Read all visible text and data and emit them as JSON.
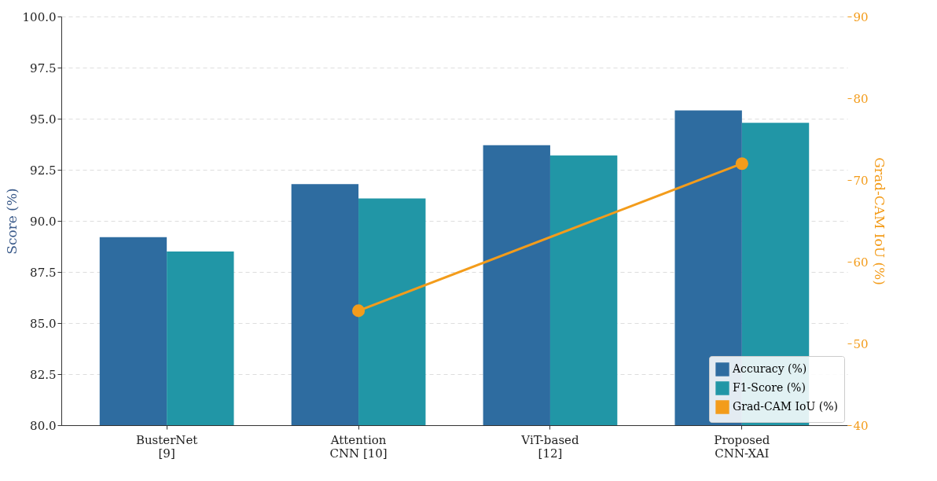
{
  "chart_data": {
    "type": "bar",
    "categories": [
      "BusterNet\n[9]",
      "Attention\nCNN [10]",
      "ViT-based\n[12]",
      "Proposed\nCNN-XAI"
    ],
    "ylabel": "Score (%)",
    "y2label": "Grad-CAM IoU (%)",
    "series": [
      {
        "name": "Accuracy (%)",
        "color": "#2e6ca0",
        "values": [
          89.2,
          91.8,
          93.7,
          95.4
        ]
      },
      {
        "name": "F1-Score (%)",
        "color": "#2196a6",
        "values": [
          88.5,
          91.1,
          93.2,
          94.8
        ]
      },
      {
        "name": "Grad-CAM IoU (%)",
        "type": "line",
        "axis": "y2",
        "color": "#f39c1b",
        "marker": "circle",
        "values": [
          null,
          54,
          null,
          72
        ]
      }
    ],
    "ylim": [
      80,
      100
    ],
    "yticks": [
      {
        "value": 80,
        "label": "80.0"
      },
      {
        "value": 82.5,
        "label": "82.5"
      },
      {
        "value": 85,
        "label": "85.0"
      },
      {
        "value": 87.5,
        "label": "87.5"
      },
      {
        "value": 90,
        "label": "90.0"
      },
      {
        "value": 92.5,
        "label": "92.5"
      },
      {
        "value": 95,
        "label": "95.0"
      },
      {
        "value": 97.5,
        "label": "97.5"
      },
      {
        "value": 100,
        "label": "100.0"
      }
    ],
    "y2lim": [
      40,
      90
    ],
    "y2ticks": [
      40,
      50,
      60,
      70,
      80,
      90
    ],
    "grid": "y",
    "legend": "bottom right"
  }
}
